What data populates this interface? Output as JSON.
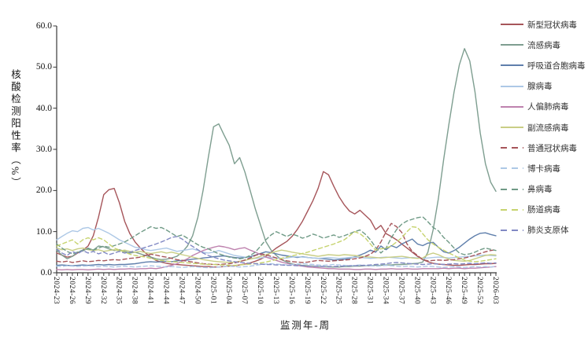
{
  "chart_data": {
    "type": "line",
    "title": "",
    "xlabel": "监测年-周",
    "ylabel": "核酸检测阳性率（%）",
    "ylim": [
      0,
      60
    ],
    "grid": false,
    "legend_position": "right",
    "y_ticks": [
      "0.0",
      "10.0",
      "20.0",
      "30.0",
      "40.0",
      "50.0",
      "60.0"
    ],
    "n_points": 85,
    "x_label_every": 3,
    "x_tick_labels": [
      "2024-23",
      "2024-26",
      "2024-29",
      "2024-32",
      "2024-35",
      "2024-38",
      "2024-41",
      "2024-44",
      "2024-47",
      "2024-50",
      "2025-01",
      "2025-04",
      "2025-07",
      "2025-10",
      "2025-13",
      "2025-16",
      "2025-19",
      "2025-22",
      "2025-25",
      "2025-28",
      "2025-31",
      "2025-34",
      "2025-37",
      "2025-40",
      "2025-43",
      "2025-46",
      "2025-49",
      "2025-52",
      "2026-03"
    ],
    "series": [
      {
        "id": "sars-cov-2",
        "name": "新型冠状病毒",
        "color": "#A6555A",
        "dash": false,
        "values": [
          4.8,
          4.3,
          3.8,
          4.0,
          4.8,
          5.5,
          6.5,
          9.0,
          13.5,
          19.0,
          20.2,
          20.5,
          17.0,
          12.5,
          9.5,
          7.5,
          6.0,
          4.8,
          3.8,
          3.0,
          2.6,
          2.3,
          2.1,
          2.0,
          1.9,
          1.8,
          1.7,
          1.6,
          1.5,
          1.5,
          1.4,
          1.4,
          1.5,
          1.6,
          1.7,
          1.9,
          2.1,
          2.4,
          2.8,
          3.3,
          4.0,
          5.0,
          6.0,
          6.8,
          7.6,
          8.8,
          10.5,
          12.5,
          15.0,
          17.5,
          20.5,
          24.6,
          23.8,
          21.0,
          18.5,
          16.5,
          15.0,
          14.3,
          15.2,
          14.0,
          12.8,
          10.5,
          11.5,
          9.5,
          8.8,
          8.0,
          7.0,
          6.0,
          5.0,
          4.0,
          3.2,
          2.7,
          2.3,
          2.1,
          2.0,
          1.9,
          1.8,
          1.8,
          1.9,
          2.0,
          2.0,
          2.1,
          2.2,
          2.2,
          2.3
        ]
      },
      {
        "id": "influenza",
        "name": "流感病毒",
        "color": "#7E9E90",
        "dash": false,
        "values": [
          5.5,
          4.3,
          3.4,
          4.0,
          5.0,
          5.3,
          6.0,
          5.5,
          6.5,
          6.3,
          5.8,
          5.4,
          5.6,
          5.2,
          4.8,
          5.0,
          4.6,
          4.2,
          3.8,
          3.4,
          3.2,
          3.3,
          3.6,
          4.0,
          5.0,
          6.5,
          9.0,
          13.5,
          20.0,
          28.0,
          35.5,
          36.2,
          33.5,
          31.0,
          26.5,
          28.0,
          24.5,
          20.0,
          15.5,
          11.5,
          7.6,
          5.5,
          4.2,
          3.2,
          2.6,
          2.2,
          1.9,
          1.8,
          1.7,
          1.6,
          1.5,
          1.5,
          1.4,
          1.4,
          1.4,
          1.5,
          1.5,
          1.6,
          1.6,
          1.7,
          1.7,
          1.8,
          1.8,
          1.9,
          1.9,
          2.0,
          2.0,
          2.1,
          2.2,
          2.3,
          2.6,
          5.0,
          10.5,
          18.0,
          27.5,
          36.0,
          44.0,
          50.5,
          54.5,
          51.5,
          44.0,
          34.0,
          26.5,
          22.0,
          19.8
        ]
      },
      {
        "id": "rsv",
        "name": "呼吸道合胞病毒",
        "color": "#5F7FAC",
        "dash": false,
        "values": [
          1.8,
          1.9,
          1.8,
          1.7,
          1.8,
          1.9,
          1.8,
          1.9,
          2.0,
          1.9,
          2.0,
          1.9,
          2.0,
          2.0,
          2.1,
          2.2,
          2.4,
          2.6,
          2.7,
          2.6,
          2.7,
          2.8,
          2.7,
          2.9,
          3.0,
          3.1,
          3.3,
          3.4,
          3.6,
          3.7,
          3.9,
          4.0,
          4.1,
          3.9,
          3.7,
          3.6,
          3.7,
          3.9,
          4.3,
          4.7,
          5.1,
          4.9,
          4.6,
          4.3,
          4.1,
          3.9,
          3.7,
          3.9,
          3.7,
          3.6,
          3.5,
          3.4,
          3.3,
          3.1,
          3.2,
          3.3,
          3.5,
          3.9,
          4.3,
          4.8,
          5.5,
          5.0,
          6.5,
          5.6,
          6.6,
          6.1,
          7.0,
          7.6,
          8.2,
          7.0,
          6.6,
          7.2,
          7.4,
          6.2,
          5.1,
          4.8,
          5.4,
          6.2,
          7.2,
          8.2,
          9.0,
          9.6,
          9.7,
          9.3,
          9.0
        ]
      },
      {
        "id": "adenovirus",
        "name": "腺病毒",
        "color": "#ADC8E6",
        "dash": false,
        "values": [
          8.0,
          8.8,
          9.6,
          10.2,
          10.0,
          10.8,
          11.0,
          10.4,
          10.8,
          10.2,
          9.6,
          8.8,
          8.0,
          7.4,
          6.8,
          6.2,
          6.0,
          5.6,
          5.4,
          5.6,
          5.8,
          6.0,
          5.6,
          5.2,
          5.4,
          5.6,
          5.8,
          5.4,
          5.0,
          4.8,
          5.0,
          5.4,
          5.0,
          4.6,
          4.2,
          4.0,
          3.8,
          3.6,
          3.5,
          3.6,
          3.8,
          3.7,
          3.6,
          3.5,
          3.6,
          3.8,
          3.9,
          3.8,
          3.7,
          3.6,
          3.5,
          3.6,
          3.7,
          3.6,
          3.5,
          3.6,
          3.7,
          3.8,
          3.7,
          3.6,
          3.5,
          3.6,
          3.7,
          3.8,
          3.7,
          3.6,
          3.5,
          3.6,
          3.7,
          3.6,
          3.5,
          3.6,
          3.7,
          3.8,
          3.7,
          3.6,
          3.7,
          3.8,
          3.9,
          4.0,
          4.1,
          4.2,
          4.3,
          4.2,
          4.1
        ]
      },
      {
        "id": "hmpv",
        "name": "人偏肺病毒",
        "color": "#BE82AE",
        "dash": false,
        "values": [
          0.8,
          0.7,
          0.8,
          0.7,
          0.8,
          0.8,
          0.7,
          0.8,
          0.9,
          0.8,
          0.9,
          0.8,
          0.9,
          0.9,
          1.0,
          0.9,
          1.0,
          1.0,
          1.1,
          1.0,
          1.2,
          1.5,
          1.8,
          2.2,
          2.8,
          3.4,
          4.2,
          4.8,
          5.4,
          5.8,
          6.2,
          6.5,
          6.3,
          6.0,
          5.6,
          5.9,
          6.1,
          5.5,
          5.0,
          4.4,
          3.8,
          3.4,
          3.0,
          2.6,
          2.3,
          2.0,
          1.8,
          1.6,
          1.4,
          1.3,
          1.2,
          1.1,
          1.0,
          1.0,
          0.9,
          0.9,
          0.9,
          0.8,
          0.8,
          0.9,
          0.9,
          0.8,
          0.9,
          0.9,
          1.0,
          0.9,
          0.9,
          1.0,
          0.9,
          0.9,
          1.0,
          1.0,
          1.0,
          1.0,
          1.1,
          1.0,
          1.1,
          1.1,
          1.0,
          1.1,
          1.1,
          1.2,
          1.3,
          1.4,
          1.5
        ]
      },
      {
        "id": "parainfluenza",
        "name": "副流感病毒",
        "color": "#C9CE85",
        "dash": false,
        "values": [
          6.0,
          5.6,
          5.8,
          5.4,
          5.8,
          6.0,
          5.6,
          5.4,
          5.6,
          5.2,
          5.4,
          5.6,
          5.3,
          5.5,
          5.2,
          5.0,
          5.2,
          4.9,
          4.7,
          4.9,
          5.1,
          4.8,
          5.0,
          4.7,
          4.4,
          4.1,
          3.8,
          3.5,
          3.2,
          3.0,
          2.8,
          2.7,
          2.6,
          2.5,
          2.6,
          2.8,
          3.0,
          3.3,
          3.6,
          4.0,
          4.4,
          4.8,
          5.2,
          5.5,
          5.3,
          5.0,
          4.8,
          4.6,
          4.4,
          4.2,
          4.0,
          4.2,
          4.4,
          4.3,
          4.2,
          4.4,
          4.3,
          4.2,
          4.0,
          3.9,
          3.8,
          3.7,
          3.6,
          3.7,
          3.8,
          3.9,
          4.0,
          3.8,
          3.6,
          3.5,
          3.6,
          4.4,
          4.8,
          4.4,
          3.8,
          3.3,
          3.0,
          2.9,
          2.8,
          3.0,
          3.4,
          3.8,
          4.2,
          4.4,
          4.3
        ]
      },
      {
        "id": "seasonal-cov",
        "name": "普通冠状病毒",
        "color": "#A6555A",
        "dash": true,
        "values": [
          2.8,
          2.6,
          2.8,
          2.5,
          2.7,
          2.9,
          2.7,
          2.8,
          3.0,
          2.9,
          3.1,
          3.2,
          3.1,
          3.3,
          3.5,
          3.6,
          3.8,
          4.2,
          4.5,
          4.3,
          4.0,
          3.8,
          3.5,
          3.2,
          3.0,
          2.8,
          2.6,
          2.4,
          2.2,
          2.1,
          2.0,
          2.0,
          2.1,
          2.2,
          2.4,
          2.7,
          3.1,
          3.6,
          4.2,
          4.6,
          4.4,
          4.0,
          3.6,
          3.2,
          2.9,
          2.7,
          2.6,
          2.5,
          2.6,
          2.8,
          3.0,
          2.9,
          2.8,
          2.9,
          3.0,
          3.1,
          3.2,
          3.4,
          3.6,
          4.0,
          4.5,
          5.5,
          7.5,
          10.0,
          12.0,
          11.2,
          9.8,
          7.0,
          5.2,
          4.2,
          3.2,
          2.9,
          3.0,
          3.1,
          3.0,
          3.1,
          3.2,
          3.4,
          3.6,
          3.9,
          4.3,
          4.7,
          5.1,
          5.4,
          5.6
        ]
      },
      {
        "id": "bocavirus",
        "name": "博卡病毒",
        "color": "#ADC8E6",
        "dash": true,
        "values": [
          1.6,
          1.5,
          1.7,
          1.6,
          1.5,
          1.6,
          1.7,
          1.6,
          1.5,
          1.6,
          1.5,
          1.4,
          1.5,
          1.6,
          1.5,
          1.4,
          1.5,
          1.6,
          1.7,
          1.6,
          1.5,
          1.4,
          1.5,
          1.4,
          1.3,
          1.4,
          1.5,
          1.4,
          1.3,
          1.2,
          1.3,
          1.4,
          1.5,
          1.6,
          1.5,
          1.4,
          1.5,
          1.6,
          1.8,
          2.0,
          2.1,
          2.2,
          2.1,
          2.0,
          1.9,
          2.0,
          2.1,
          2.2,
          2.1,
          2.0,
          1.9,
          1.8,
          1.9,
          2.0,
          1.9,
          1.8,
          1.7,
          1.8,
          1.9,
          1.8,
          1.7,
          1.6,
          1.7,
          1.8,
          1.7,
          1.6,
          1.5,
          1.6,
          1.5,
          1.4,
          1.5,
          1.6,
          1.5,
          1.4,
          1.3,
          1.4,
          1.5,
          1.4,
          1.3,
          1.4,
          1.5,
          1.4,
          1.5,
          1.4,
          1.5
        ]
      },
      {
        "id": "rhinovirus",
        "name": "鼻病毒",
        "color": "#6F9A86",
        "dash": true,
        "values": [
          7.0,
          6.0,
          5.2,
          4.6,
          5.0,
          5.5,
          5.8,
          5.5,
          6.0,
          6.5,
          6.2,
          6.6,
          7.0,
          7.5,
          8.2,
          9.0,
          9.8,
          10.5,
          11.2,
          10.8,
          11.0,
          10.4,
          9.6,
          8.8,
          9.2,
          8.4,
          7.6,
          6.8,
          6.2,
          5.8,
          5.2,
          4.6,
          4.2,
          3.8,
          3.6,
          3.4,
          3.6,
          4.2,
          5.0,
          6.5,
          8.0,
          9.2,
          10.0,
          9.4,
          8.8,
          9.4,
          9.0,
          8.4,
          8.8,
          9.4,
          9.0,
          8.4,
          8.8,
          9.2,
          8.6,
          9.0,
          9.5,
          10.0,
          10.4,
          9.4,
          8.0,
          6.2,
          4.8,
          6.0,
          8.5,
          10.5,
          11.8,
          12.6,
          13.0,
          13.4,
          13.6,
          12.4,
          11.0,
          10.2,
          8.6,
          7.4,
          6.0,
          4.8,
          4.4,
          4.6,
          5.0,
          5.6,
          6.0,
          5.7,
          5.4
        ]
      },
      {
        "id": "enterovirus",
        "name": "肠道病毒",
        "color": "#C6D36E",
        "dash": true,
        "values": [
          6.5,
          7.0,
          7.5,
          8.0,
          7.0,
          8.0,
          8.5,
          8.0,
          8.5,
          8.0,
          7.0,
          6.0,
          5.5,
          5.0,
          4.5,
          4.2,
          4.0,
          3.8,
          3.5,
          3.2,
          3.0,
          2.8,
          2.7,
          2.6,
          2.5,
          2.4,
          2.3,
          2.2,
          2.1,
          2.0,
          2.0,
          1.9,
          1.9,
          1.8,
          1.8,
          1.9,
          2.0,
          2.1,
          2.2,
          2.4,
          2.6,
          2.9,
          3.2,
          3.5,
          3.8,
          4.1,
          4.4,
          4.7,
          5.0,
          5.4,
          5.8,
          6.2,
          6.6,
          7.0,
          7.5,
          8.0,
          9.0,
          10.0,
          9.5,
          8.5,
          7.0,
          5.5,
          5.8,
          6.0,
          6.5,
          7.5,
          8.5,
          10.0,
          11.2,
          11.0,
          9.5,
          8.0,
          7.0,
          6.2,
          5.5,
          4.8,
          4.2,
          3.6,
          3.1,
          2.8,
          2.7,
          2.8,
          3.0,
          3.2,
          3.4
        ]
      },
      {
        "id": "mycoplasma",
        "name": "肺炎支原体",
        "color": "#8289C4",
        "dash": true,
        "values": [
          5.8,
          4.8,
          4.2,
          5.2,
          4.6,
          5.4,
          4.8,
          5.2,
          4.6,
          5.0,
          4.4,
          4.8,
          5.2,
          4.8,
          5.0,
          5.4,
          5.8,
          6.2,
          6.6,
          7.0,
          7.5,
          8.0,
          8.6,
          8.8,
          8.2,
          7.2,
          6.4,
          5.6,
          4.8,
          4.2,
          3.8,
          3.4,
          3.1,
          2.9,
          2.7,
          2.5,
          2.4,
          2.3,
          2.2,
          2.1,
          2.0,
          2.0,
          1.9,
          1.9,
          1.8,
          1.8,
          1.7,
          1.7,
          1.6,
          1.6,
          1.6,
          1.5,
          1.5,
          1.5,
          1.6,
          1.6,
          1.7,
          1.7,
          1.8,
          1.8,
          1.9,
          2.0,
          2.1,
          2.2,
          2.4,
          2.5,
          2.4,
          2.3,
          2.2,
          2.1,
          2.0,
          2.1,
          2.2,
          2.1,
          2.0,
          2.1,
          2.2,
          2.1,
          2.2,
          2.3,
          2.2,
          2.3,
          2.4,
          2.3,
          2.4
        ]
      }
    ]
  }
}
